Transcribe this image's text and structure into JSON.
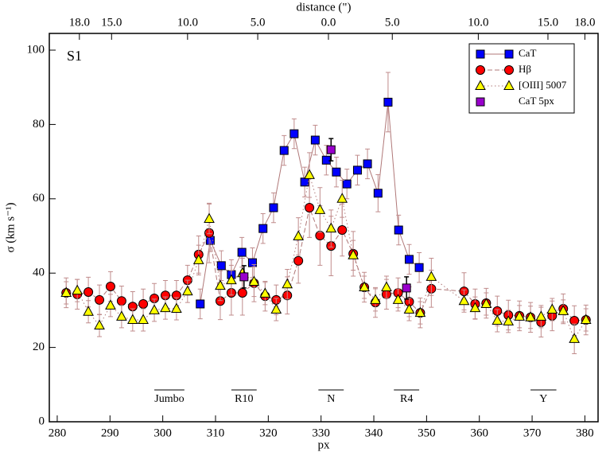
{
  "chart_data": {
    "type": "scatter",
    "xlabel": "px",
    "x2label": "distance (\")",
    "ylabel": "σ (km s⁻¹)",
    "annotation": "S1",
    "xlim": [
      278.5,
      382.5
    ],
    "xticks": [
      280,
      290,
      300,
      310,
      320,
      330,
      340,
      350,
      360,
      370,
      380
    ],
    "x2ticks": [
      {
        "value": 284.2,
        "label": "18.0"
      },
      {
        "value": 290.3,
        "label": "15.0"
      },
      {
        "value": 304.7,
        "label": "10.0"
      },
      {
        "value": 318,
        "label": "5.0"
      },
      {
        "value": 331.4,
        "label": "0.0"
      },
      {
        "value": 343.5,
        "label": "5.0"
      },
      {
        "value": 359.8,
        "label": "10.0"
      },
      {
        "value": 373,
        "label": "15.0"
      },
      {
        "value": 380,
        "label": "18.0"
      }
    ],
    "ylim": [
      0,
      104.5
    ],
    "yticks": [
      0,
      20,
      40,
      60,
      80,
      100
    ],
    "legend": "upper right",
    "regions": [
      {
        "label": "Jumbo",
        "x": [
          298.4,
          304.1
        ]
      },
      {
        "label": "R10",
        "x": [
          313,
          317.8
        ]
      },
      {
        "label": "N",
        "x": [
          329.5,
          334.3
        ]
      },
      {
        "label": "R4",
        "x": [
          343.8,
          348.6
        ]
      },
      {
        "label": "Y",
        "x": [
          369.7,
          374.6
        ]
      }
    ],
    "series": [
      {
        "name": "CaT",
        "color": "#0000ff",
        "marker": "square",
        "line": "solid",
        "x": [
          307.1,
          309,
          311.1,
          313,
          315,
          317,
          319,
          321,
          323,
          324.9,
          326.9,
          328.9,
          331,
          332.9,
          334.9,
          336.9,
          338.8,
          340.8,
          342.7,
          344.7,
          346.7,
          348.6
        ],
        "values": [
          31.7,
          48.8,
          42,
          39.6,
          45.6,
          42.8,
          52,
          57.6,
          73,
          77.5,
          64.5,
          75.8,
          70.4,
          67.2,
          64,
          67.7,
          69.4,
          61.5,
          86,
          51.6,
          43.7,
          41.5
        ],
        "errors": [
          4,
          3,
          4,
          4,
          4,
          4,
          4,
          4,
          4,
          4,
          4,
          4,
          4,
          4,
          4,
          4,
          4,
          5,
          8,
          4,
          4,
          4
        ]
      },
      {
        "name": "Hβ",
        "color": "#ff0000",
        "marker": "circle",
        "line": "dashed",
        "x": [
          281.7,
          283.8,
          285.9,
          288,
          290.1,
          292.2,
          294.3,
          296.3,
          298.4,
          300.5,
          302.6,
          304.7,
          306.8,
          308.8,
          310.9,
          313,
          315.1,
          317.3,
          319.4,
          321.5,
          323.6,
          325.7,
          327.8,
          329.8,
          331.9,
          334,
          336.1,
          338.2,
          340.3,
          342.4,
          344.6,
          346.7,
          348.8,
          350.9,
          357.1,
          359.2,
          361.3,
          363.4,
          365.5,
          367.6,
          369.7,
          371.7,
          373.8,
          375.9,
          378,
          380.2
        ],
        "values": [
          34.7,
          34.3,
          34.9,
          32.8,
          36.4,
          32.5,
          31,
          31.7,
          33.2,
          34,
          34,
          38.1,
          45,
          50.8,
          32.5,
          34.7,
          34.7,
          37.3,
          33.8,
          32.8,
          34,
          43.3,
          57.6,
          50.1,
          47.3,
          51.6,
          45.2,
          36.2,
          32.1,
          34.3,
          34.7,
          32.3,
          29.3,
          35.8,
          35.1,
          31.7,
          31.9,
          29.8,
          28.7,
          28.5,
          28.1,
          26.8,
          28.5,
          30.4,
          27.2,
          27.4
        ],
        "errors": [
          4,
          4,
          4,
          4,
          4,
          4,
          4,
          4,
          4,
          4,
          4,
          4,
          5,
          8,
          5,
          6,
          6,
          5,
          4,
          4,
          5,
          6,
          8,
          8,
          8,
          7,
          6,
          4,
          4,
          4,
          4,
          4,
          4,
          5,
          5,
          4,
          4,
          4,
          4,
          4,
          4,
          4,
          4,
          4,
          4,
          4
        ]
      },
      {
        "name": "[OIII] 5007",
        "color": "#ffff00",
        "marker": "triangle",
        "line": "dotted",
        "x": [
          281.7,
          283.8,
          285.9,
          288,
          290.1,
          292.2,
          294.3,
          296.3,
          298.4,
          300.5,
          302.6,
          304.7,
          306.8,
          308.8,
          310.9,
          313,
          315.1,
          317.3,
          319.4,
          321.5,
          323.6,
          325.7,
          327.8,
          329.8,
          331.9,
          334,
          336.1,
          338.2,
          340.3,
          342.4,
          344.6,
          346.7,
          348.8,
          350.9,
          357.1,
          359.2,
          361.3,
          363.4,
          365.5,
          367.6,
          369.7,
          371.7,
          373.8,
          375.9,
          378,
          380.2
        ],
        "values": [
          34.7,
          35.3,
          29.6,
          25.9,
          31.3,
          28.3,
          27.4,
          27.4,
          30,
          30.6,
          30.4,
          35.1,
          43.5,
          54.6,
          36.6,
          38.1,
          40,
          37.7,
          34.5,
          30.2,
          37,
          49.9,
          66.4,
          57,
          52,
          60,
          44.8,
          36.2,
          32.8,
          36.2,
          32.8,
          30.2,
          29.3,
          39,
          32.5,
          30.6,
          31.7,
          27.2,
          27,
          28.3,
          28.1,
          28.3,
          30.2,
          29.8,
          22.3,
          27.4
        ],
        "errors": [
          3,
          3,
          3,
          3,
          3,
          3,
          3,
          3,
          3,
          3,
          3,
          3,
          4,
          4,
          4,
          4,
          4,
          4,
          3,
          3,
          4,
          5,
          6,
          6,
          5,
          5,
          4,
          3,
          3,
          3,
          3,
          3,
          3,
          5,
          3,
          3,
          3,
          3,
          3,
          3,
          3,
          3,
          3,
          3,
          4,
          3
        ]
      },
      {
        "name": "CaT  5px",
        "color": "#9900cc",
        "marker": "square",
        "line": "none",
        "x": [
          315.4,
          331.9,
          346.2
        ],
        "values": [
          39,
          73.2,
          36
        ],
        "errors": [
          3,
          3,
          3
        ]
      }
    ]
  }
}
